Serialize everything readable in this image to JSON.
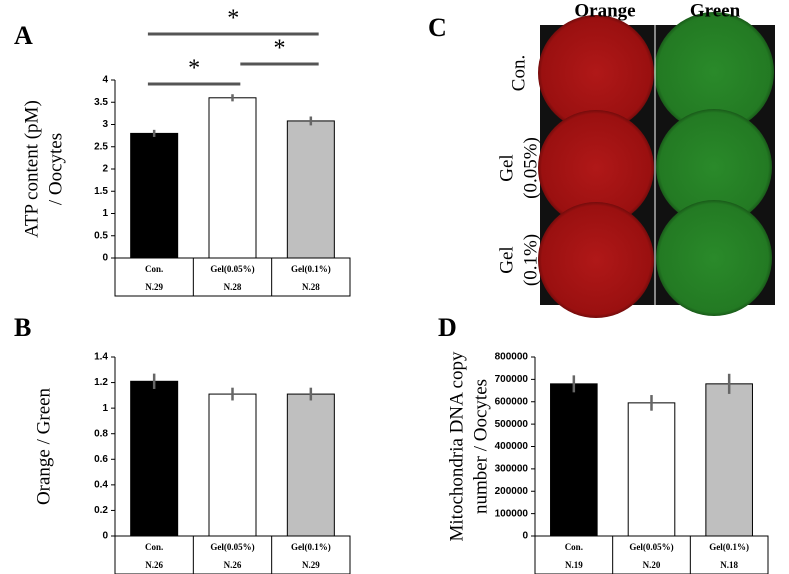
{
  "chart_data": [
    {
      "type": "bar",
      "panel": "A",
      "ylabel": [
        "ATP content (pM)",
        "/ Oocytes"
      ],
      "categories": [
        "Con.",
        "Gel(0.05%)",
        "Gel(0.1%)"
      ],
      "n_labels": [
        "N.29",
        "N.28",
        "N.28"
      ],
      "values": [
        2.8,
        3.6,
        3.08
      ],
      "errors": [
        0.08,
        0.08,
        0.1
      ],
      "colors": [
        "#000000",
        "#ffffff",
        "#bfbfbf"
      ],
      "ylim": [
        0,
        4
      ],
      "yticks": [
        0,
        0.5,
        1,
        1.5,
        2,
        2.5,
        3,
        3.5,
        4
      ],
      "annotations": [
        {
          "label": "*",
          "from": 0,
          "to": 2
        },
        {
          "label": "*",
          "from": 1,
          "to": 2
        },
        {
          "label": "*",
          "from": 0,
          "to": 1
        }
      ]
    },
    {
      "type": "bar",
      "panel": "B",
      "ylabel": [
        "Orange / Green"
      ],
      "categories": [
        "Con.",
        "Gel(0.05%)",
        "Gel(0.1%)"
      ],
      "n_labels": [
        "N.26",
        "N.26",
        "N.29"
      ],
      "values": [
        1.21,
        1.11,
        1.11
      ],
      "errors": [
        0.06,
        0.05,
        0.05
      ],
      "colors": [
        "#000000",
        "#ffffff",
        "#bfbfbf"
      ],
      "ylim": [
        0,
        1.4
      ],
      "yticks": [
        0,
        0.2,
        0.4,
        0.6,
        0.8,
        1,
        1.2,
        1.4
      ]
    },
    {
      "type": "bar",
      "panel": "D",
      "ylabel": [
        "Mitochondria DNA copy",
        "number / Oocytes"
      ],
      "categories": [
        "Con.",
        "Gel(0.05%)",
        "Gel(0.1%)"
      ],
      "n_labels": [
        "N.19",
        "N.20",
        "N.18"
      ],
      "values": [
        680000,
        595000,
        680000
      ],
      "errors": [
        38000,
        35000,
        45000
      ],
      "colors": [
        "#000000",
        "#ffffff",
        "#bfbfbf"
      ],
      "ylim": [
        0,
        800000
      ],
      "yticks": [
        0,
        100000,
        200000,
        300000,
        400000,
        500000,
        600000,
        700000,
        800000
      ]
    }
  ],
  "panel_c": {
    "panel": "C",
    "columns": [
      "Orange",
      "Green"
    ],
    "rows": [
      [
        "Con."
      ],
      [
        "Gel",
        "(0.05%)"
      ],
      [
        "Gel",
        "(0.1%)"
      ]
    ]
  }
}
